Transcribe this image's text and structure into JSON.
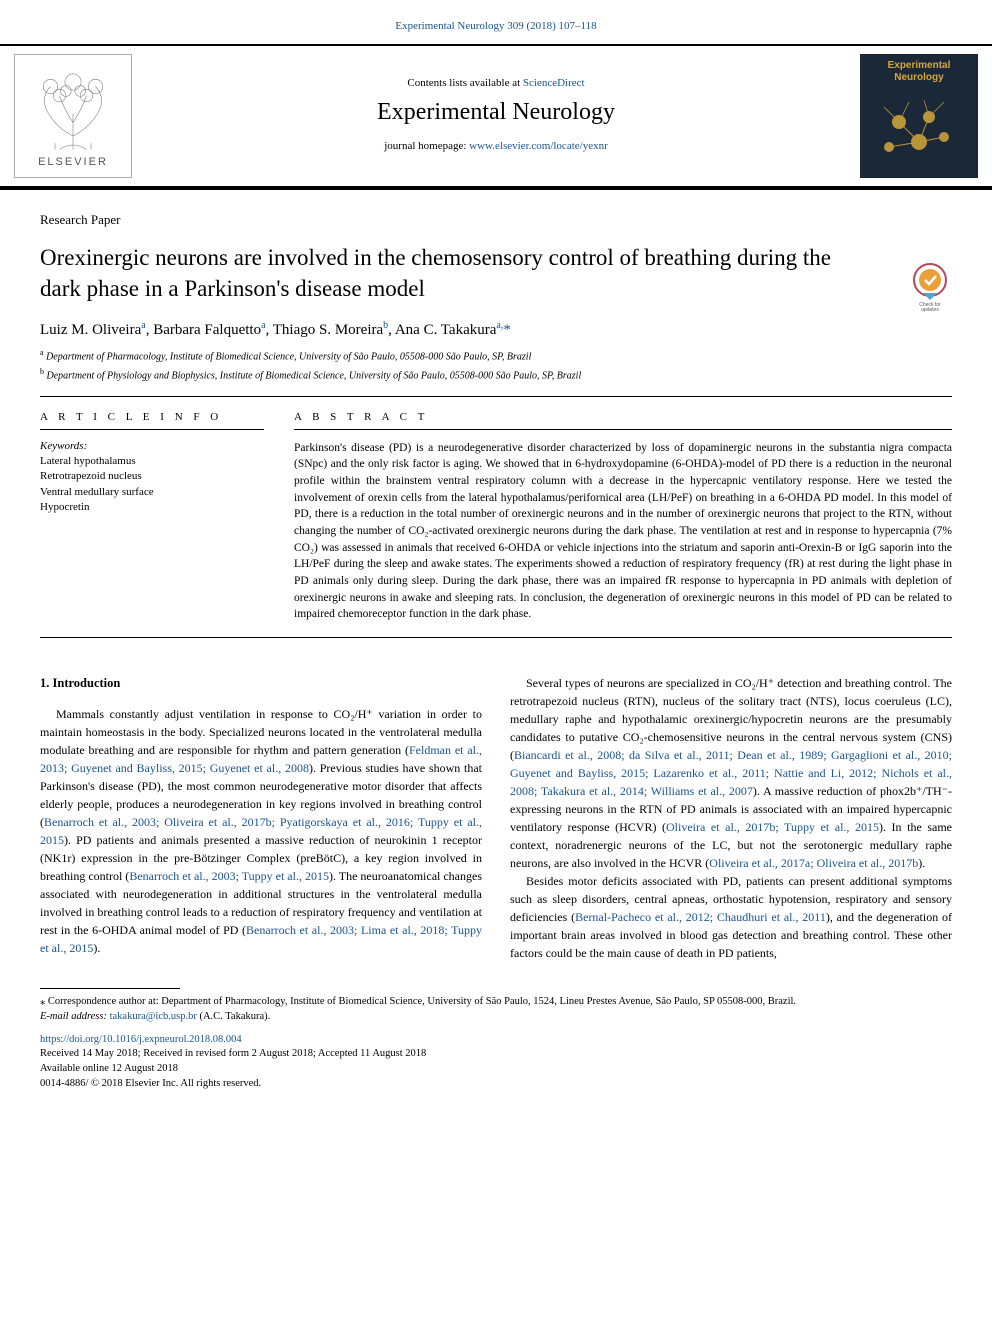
{
  "header_link_text": "Experimental Neurology 309 (2018) 107–118",
  "masthead": {
    "contents_prefix": "Contents lists available at ",
    "contents_link": "ScienceDirect",
    "journal_name": "Experimental Neurology",
    "homepage_prefix": "journal homepage: ",
    "homepage_url": "www.elsevier.com/locate/yexnr",
    "elsevier_label": "ELSEVIER",
    "cover_title_line1": "Experimental",
    "cover_title_line2": "Neurology"
  },
  "article": {
    "type": "Research Paper",
    "title": "Orexinergic neurons are involved in the chemosensory control of breathing during the dark phase in a Parkinson's disease model",
    "check_label": "Check for updates",
    "authors_html": "Luiz M. Oliveira<sup>a</sup>, Barbara Falquetto<sup>a</sup>, Thiago S. Moreira<sup>b</sup>, Ana C. Takakura<sup>a,</sup><span class='corr'>*</span>",
    "affil_a": "Department of Pharmacology, Institute of Biomedical Science, University of São Paulo, 05508-000 São Paulo, SP, Brazil",
    "affil_b": "Department of Physiology and Biophysics, Institute of Biomedical Science, University of São Paulo, 05508-000 São Paulo, SP, Brazil"
  },
  "info": {
    "section_label": "A R T I C L E  I N F O",
    "keywords_label": "Keywords:",
    "keywords": [
      "Lateral hypothalamus",
      "Retrotrapezoid nucleus",
      "Ventral medullary surface",
      "Hypocretin"
    ]
  },
  "abstract": {
    "section_label": "A B S T R A C T",
    "text": "Parkinson's disease (PD) is a neurodegenerative disorder characterized by loss of dopaminergic neurons in the substantia nigra compacta (SNpc) and the only risk factor is aging. We showed that in 6-hydroxydopamine (6-OHDA)-model of PD there is a reduction in the neuronal profile within the brainstem ventral respiratory column with a decrease in the hypercapnic ventilatory response. Here we tested the involvement of orexin cells from the lateral hypothalamus/perifornical area (LH/PeF) on breathing in a 6-OHDA PD model. In this model of PD, there is a reduction in the total number of orexinergic neurons and in the number of orexinergic neurons that project to the RTN, without changing the number of CO₂-activated orexinergic neurons during the dark phase. The ventilation at rest and in response to hypercapnia (7% CO₂) was assessed in animals that received 6-OHDA or vehicle injections into the striatum and saporin anti-Orexin-B or IgG saporin into the LH/PeF during the sleep and awake states. The experiments showed a reduction of respiratory frequency (fR) at rest during the light phase in PD animals only during sleep. During the dark phase, there was an impaired fR response to hypercapnia in PD animals with depletion of orexinergic neurons in awake and sleeping rats. In conclusion, the degeneration of orexinergic neurons in this model of PD can be related to impaired chemoreceptor function in the dark phase."
  },
  "body": {
    "intro_heading": "1. Introduction",
    "left_p1": "Mammals constantly adjust ventilation in response to CO₂/H⁺ variation in order to maintain homeostasis in the body. Specialized neurons located in the ventrolateral medulla modulate breathing and are responsible for rhythm and pattern generation (",
    "left_refs1": "Feldman et al., 2013; Guyenet and Bayliss, 2015; Guyenet et al., 2008",
    "left_p1b": "). Previous studies have shown that Parkinson's disease (PD), the most common neurodegenerative motor disorder that affects elderly people, produces a neurodegeneration in key regions involved in breathing control (",
    "left_refs2": "Benarroch et al., 2003; Oliveira et al., 2017b; Pyatigorskaya et al., 2016; Tuppy et al., 2015",
    "left_p1c": "). PD patients and animals presented a massive reduction of neurokinin 1 receptor (NK1r) expression in the pre-Bötzinger Complex (preBötC), a key region involved in breathing control (",
    "left_refs3": "Benarroch et al., 2003; Tuppy et al., 2015",
    "left_p1d": "). The neuroanatomical changes associated with neurodegeneration in additional structures in the ventrolateral medulla involved in breathing control leads to a reduction of respiratory frequency and ventilation at rest in the 6-OHDA animal model of PD (",
    "left_refs4": "Benarroch et al., 2003; Lima et al., 2018; Tuppy et al., 2015",
    "left_p1e": ").",
    "right_p1": "Several types of neurons are specialized in CO₂/H⁺ detection and breathing control. The retrotrapezoid nucleus (RTN), nucleus of the solitary tract (NTS), locus coeruleus (LC), medullary raphe and hypothalamic orexinergic/hypocretin neurons are the presumably candidates to putative CO₂-chemosensitive neurons in the central nervous system (CNS) (",
    "right_refs1": "Biancardi et al., 2008; da Silva et al., 2011; Dean et al., 1989; Gargaglioni et al., 2010; Guyenet and Bayliss, 2015; Lazarenko et al., 2011; Nattie and Li, 2012; Nichols et al., 2008; Takakura et al., 2014; Williams et al., 2007",
    "right_p1b": "). A massive reduction of phox2b⁺/TH⁻-expressing neurons in the RTN of PD animals is associated with an impaired hypercapnic ventilatory response (HCVR) (",
    "right_refs2": "Oliveira et al., 2017b; Tuppy et al., 2015",
    "right_p1c": "). In the same context, noradrenergic neurons of the LC, but not the serotonergic medullary raphe neurons, are also involved in the HCVR (",
    "right_refs3": "Oliveira et al., 2017a; Oliveira et al., 2017b",
    "right_p1d": ").",
    "right_p2": "Besides motor deficits associated with PD, patients can present additional symptoms such as sleep disorders, central apneas, orthostatic hypotension, respiratory and sensory deficiencies (",
    "right_refs4": "Bernal-Pacheco et al., 2012; Chaudhuri et al., 2011",
    "right_p2b": "), and the degeneration of important brain areas involved in blood gas detection and breathing control. These other factors could be the main cause of death in PD patients,"
  },
  "footnote": {
    "corr_text": "⁎ Correspondence author at: Department of Pharmacology, Institute of Biomedical Science, University of São Paulo, 1524, Lineu Prestes Avenue, São Paulo, SP 05508-000, Brazil.",
    "email_label": "E-mail address: ",
    "email": "takakura@icb.usp.br",
    "email_suffix": " (A.C. Takakura)."
  },
  "doi": {
    "url": "https://doi.org/10.1016/j.expneurol.2018.08.004",
    "received": "Received 14 May 2018; Received in revised form 2 August 2018; Accepted 11 August 2018",
    "online": "Available online 12 August 2018",
    "copyright": "0014-4886/ © 2018 Elsevier Inc. All rights reserved."
  },
  "colors": {
    "link": "#1a5490",
    "cover_bg": "#1a2838",
    "cover_accent": "#d4a838"
  }
}
